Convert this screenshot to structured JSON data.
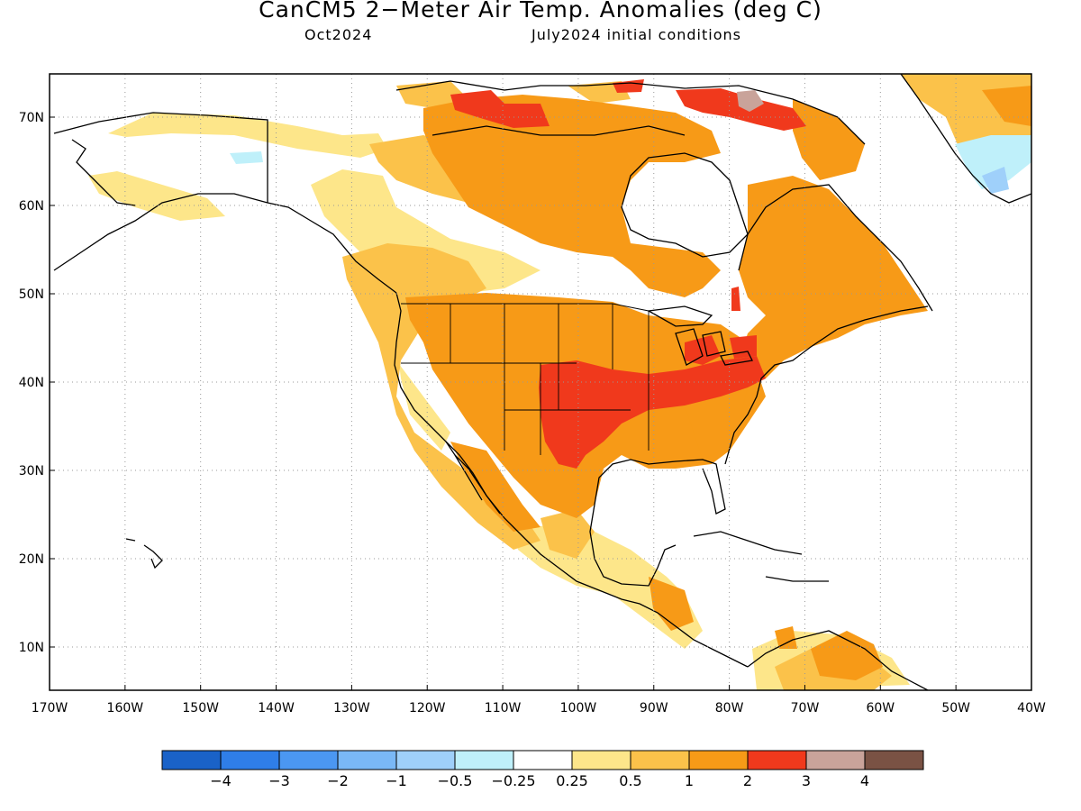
{
  "title": "CanCM5 2−Meter Air Temp. Anomalies (deg C)",
  "subtitle_left": "Oct2024",
  "subtitle_right": "July2024 initial conditions",
  "x_tick_labels": [
    "170W",
    "160W",
    "150W",
    "140W",
    "130W",
    "120W",
    "110W",
    "100W",
    "90W",
    "80W",
    "70W",
    "60W",
    "50W",
    "40W"
  ],
  "y_tick_labels": [
    "70N",
    "60N",
    "50N",
    "40N",
    "30N",
    "20N",
    "10N"
  ],
  "colorbar": {
    "colors": [
      "#1a62c8",
      "#2f7ee8",
      "#4b97f2",
      "#7ab8f6",
      "#9fd0fa",
      "#bff0fa",
      "#ffffff",
      "#fde68a",
      "#fbc24a",
      "#f79a17",
      "#f0391c",
      "#c9a39a",
      "#7a5244"
    ],
    "labels": [
      "−4",
      "−3",
      "−2",
      "−1",
      "−0.5",
      "−0.25",
      "0.25",
      "0.5",
      "1",
      "2",
      "3",
      "4"
    ]
  },
  "map_regions": [
    {
      "category": "0.25 to 0.5",
      "color": "#fde68a"
    },
    {
      "category": "0.5 to 1",
      "color": "#fbc24a"
    },
    {
      "category": "1 to 2",
      "color": "#f79a17"
    },
    {
      "category": "2 to 3",
      "color": "#f0391c"
    },
    {
      "category": "3 to 4",
      "color": "#c9a39a"
    },
    {
      "category": "-0.5 to -0.25",
      "color": "#bff0fa"
    },
    {
      "category": "-1 to -0.5",
      "color": "#9fd0fa"
    }
  ]
}
